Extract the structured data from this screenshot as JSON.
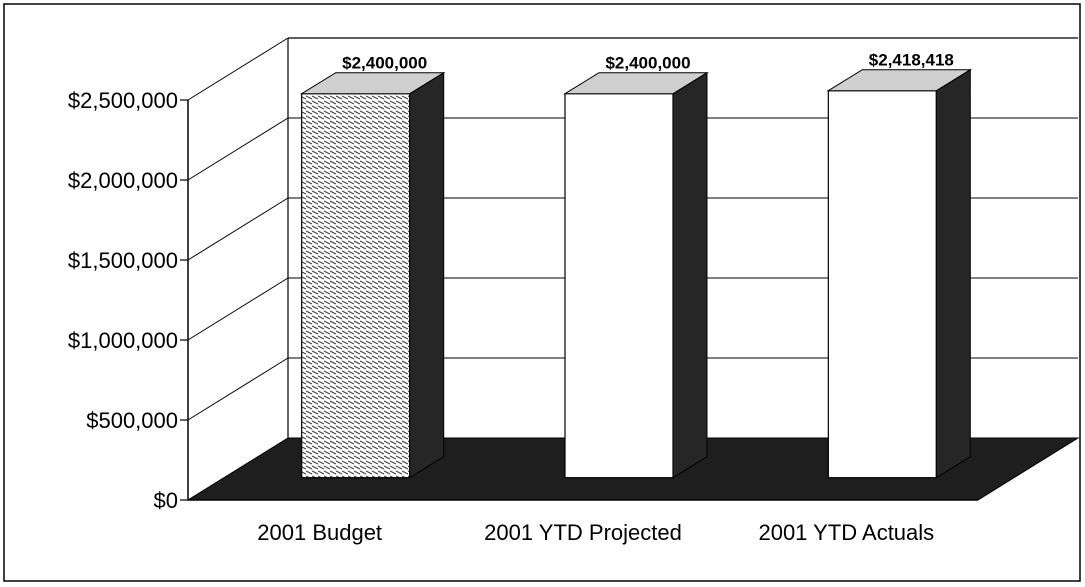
{
  "chart_data": {
    "type": "bar",
    "categories": [
      "2001 Budget",
      "2001 YTD Projected",
      "2001 YTD Actuals"
    ],
    "values": [
      2400000,
      2400000,
      2418418
    ],
    "data_labels": [
      "$2,400,000",
      "$2,400,000",
      "$2,418,418"
    ],
    "y_ticks": [
      "$0",
      "$500,000",
      "$1,000,000",
      "$1,500,000",
      "$2,000,000",
      "$2,500,000"
    ],
    "y_tick_values": [
      0,
      500000,
      1000000,
      1500000,
      2000000,
      2500000
    ],
    "ylim": [
      0,
      2500000
    ],
    "grid": true,
    "legend": "none",
    "title": "",
    "xlabel": "",
    "ylabel": "",
    "style": "3d",
    "colors": {
      "floor": "#1e1e1e",
      "bar_front": "#ffffff",
      "bar_side": "#262626",
      "bar_top": "#cfcfcf",
      "hatch": "#444444",
      "grid": "#000000"
    }
  }
}
